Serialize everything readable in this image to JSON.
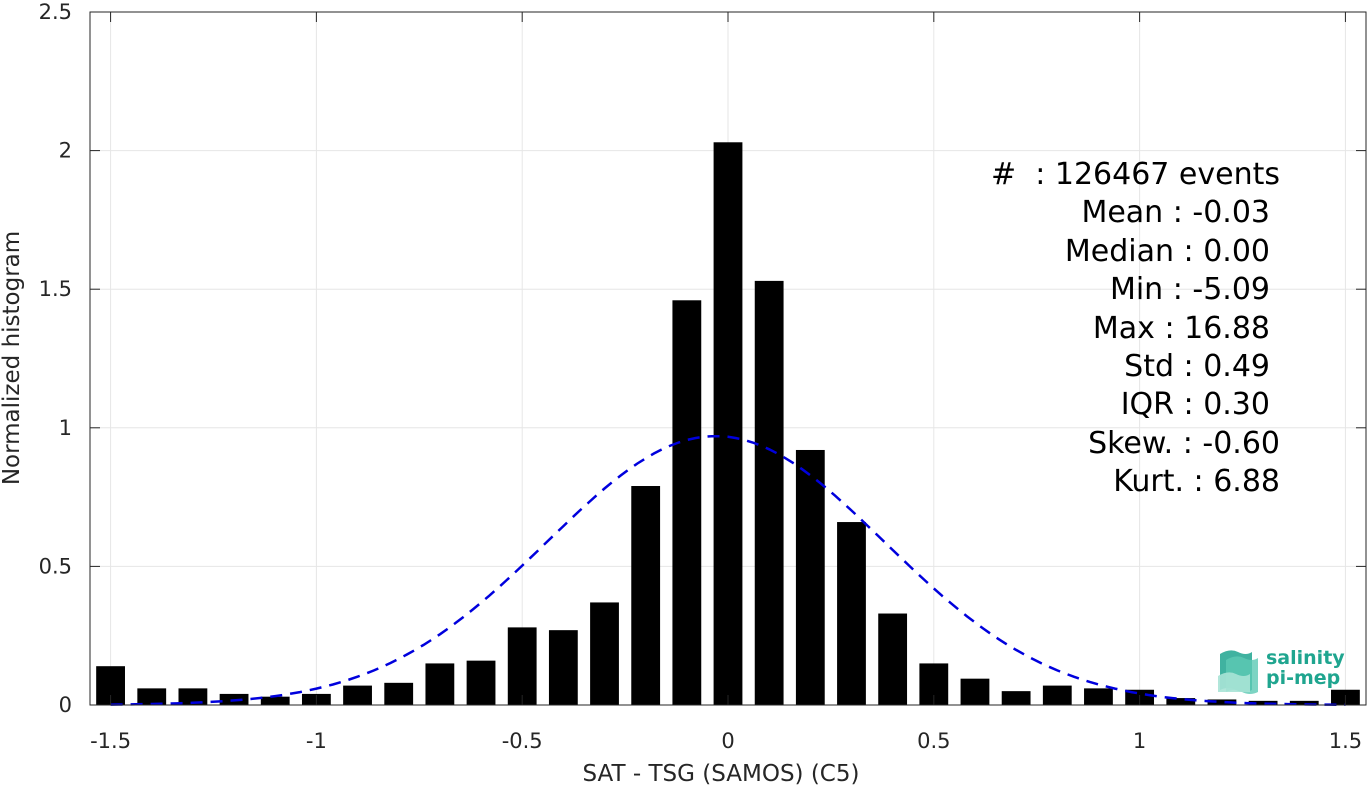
{
  "chart_data": {
    "type": "bar",
    "xlabel": "SAT - TSG (SAMOS) (C5)",
    "ylabel": "Normalized histogram",
    "xlim": [
      -1.55,
      1.55
    ],
    "ylim": [
      0,
      2.5
    ],
    "xticks": [
      "-1.5",
      "-1",
      "-0.5",
      "0",
      "0.5",
      "1",
      "1.5"
    ],
    "xtick_values": [
      -1.5,
      -1,
      -0.5,
      0,
      0.5,
      1,
      1.5
    ],
    "yticks": [
      "0",
      "0.5",
      "1",
      "1.5",
      "2",
      "2.5"
    ],
    "ytick_values": [
      0,
      0.5,
      1,
      1.5,
      2,
      2.5
    ],
    "grid": true,
    "bar_color": "#000000",
    "curve_color": "#0000dd",
    "bins": [
      -1.5,
      -1.4,
      -1.3,
      -1.2,
      -1.1,
      -1.0,
      -0.9,
      -0.8,
      -0.7,
      -0.6,
      -0.5,
      -0.4,
      -0.3,
      -0.2,
      -0.1,
      0.0,
      0.1,
      0.2,
      0.3,
      0.4,
      0.5,
      0.6,
      0.7,
      0.8,
      0.9,
      1.0,
      1.1,
      1.2,
      1.3,
      1.4,
      1.5
    ],
    "values": [
      0.14,
      0.06,
      0.06,
      0.04,
      0.03,
      0.04,
      0.07,
      0.08,
      0.15,
      0.16,
      0.28,
      0.27,
      0.37,
      0.79,
      1.46,
      2.03,
      1.53,
      0.92,
      0.66,
      0.33,
      0.15,
      0.095,
      0.05,
      0.07,
      0.06,
      0.055,
      0.025,
      0.02,
      0.015,
      0.015,
      0.055
    ],
    "fit": {
      "type": "gaussian",
      "mean": -0.03,
      "std": 0.41,
      "peak": 0.97,
      "style": "dashed"
    }
  },
  "stats": {
    "count": "#  : 126467 events",
    "mean": "Mean : -0.03",
    "median": "Median : 0.00",
    "min": "Min : -5.09",
    "max": "Max : 16.88",
    "std": "Std : 0.49",
    "iqr": "IQR : 0.30",
    "skew": "Skew. : -0.60",
    "kurt": "Kurt. : 6.88"
  },
  "logo": {
    "line1": "salinity",
    "line2": "pi-mep",
    "color": "#1fa58f"
  }
}
